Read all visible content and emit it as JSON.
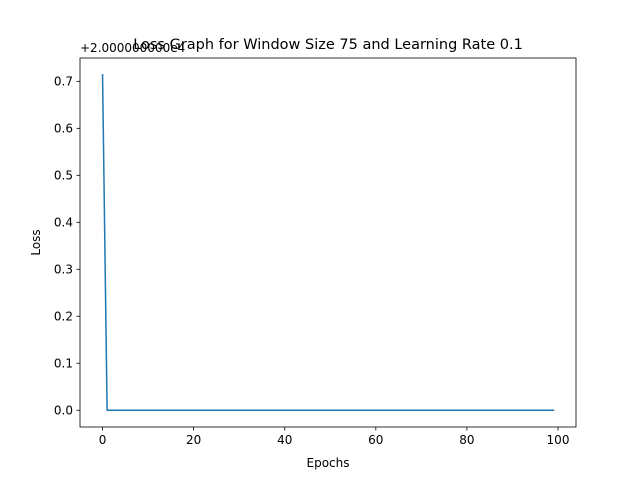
{
  "chart_data": {
    "type": "line",
    "title": "Loss Graph for Window Size 75 and Learning Rate 0.1",
    "xlabel": "Epochs",
    "ylabel": "Loss",
    "offset_label": "+2.000000000e4",
    "xlim": [
      -4.95,
      103.95
    ],
    "ylim": [
      -0.0357,
      0.7497
    ],
    "xticks": [
      0,
      20,
      40,
      60,
      80,
      100
    ],
    "yticks": [
      0.0,
      0.1,
      0.2,
      0.3,
      0.4,
      0.5,
      0.6,
      0.7
    ],
    "ytick_labels": [
      "0.0",
      "0.1",
      "0.2",
      "0.3",
      "0.4",
      "0.5",
      "0.6",
      "0.7"
    ],
    "grid": false,
    "series": [
      {
        "color": "#1f77b4",
        "x": [
          0,
          1,
          99
        ],
        "y": [
          0.714,
          0.0,
          0.0
        ]
      }
    ]
  }
}
